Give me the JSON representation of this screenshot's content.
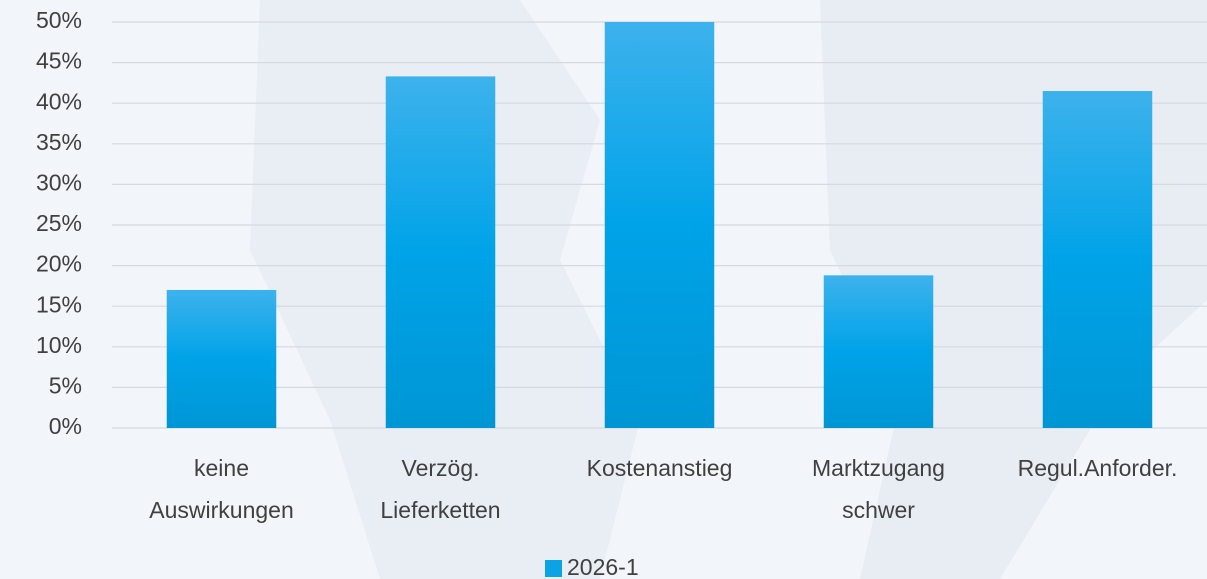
{
  "chart_data": {
    "type": "bar",
    "categories": [
      [
        "keine",
        "Auswirkungen"
      ],
      [
        "Verzög.",
        "Lieferketten"
      ],
      [
        "Kostenanstieg"
      ],
      [
        "Marktzugang",
        "schwer"
      ],
      [
        "Regul.Anforder."
      ]
    ],
    "series": [
      {
        "name": "2026-1",
        "color": "#0aa3e6",
        "values": [
          17.0,
          43.3,
          50,
          18.8,
          41.5
        ]
      }
    ],
    "ylim": [
      0,
      50
    ],
    "yticks": [
      {
        "value": 0,
        "label": "0%"
      },
      {
        "value": 5,
        "label": "5%"
      },
      {
        "value": 10,
        "label": "10%"
      },
      {
        "value": 15,
        "label": "15%"
      },
      {
        "value": 20,
        "label": "20%"
      },
      {
        "value": 25,
        "label": "25%"
      },
      {
        "value": 30,
        "label": "30%"
      },
      {
        "value": 35,
        "label": "35%"
      },
      {
        "value": 40,
        "label": "40%"
      },
      {
        "value": 45,
        "label": "45%"
      },
      {
        "value": 50,
        "label": "50%"
      }
    ],
    "grid": true,
    "legend": "bottom"
  }
}
